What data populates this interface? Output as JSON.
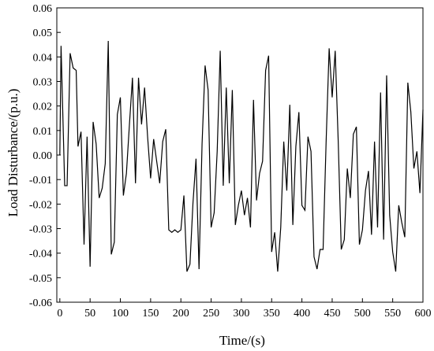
{
  "chart_data": {
    "type": "line",
    "title": "",
    "xlabel": "Time/(s)",
    "ylabel": "Load Disturbance/(p.u.)",
    "xlim": [
      -5,
      600
    ],
    "ylim": [
      -0.06,
      0.06
    ],
    "xticks": [
      0,
      50,
      100,
      150,
      200,
      250,
      300,
      350,
      400,
      450,
      500,
      550,
      600
    ],
    "yticks": [
      -0.06,
      -0.05,
      -0.04,
      -0.03,
      -0.02,
      -0.01,
      0.0,
      0.01,
      0.02,
      0.03,
      0.04,
      0.05,
      0.06
    ],
    "ytick_labels": [
      "-0.06",
      "-0.05",
      "-0.04",
      "-0.03",
      "-0.02",
      "-0.01",
      "0.00",
      "0.01",
      "0.02",
      "0.03",
      "0.04",
      "0.05",
      "0.06"
    ],
    "grid": false,
    "legend": "none",
    "line_color": "#000000",
    "series": [
      {
        "x": [
          0,
          2,
          8,
          12,
          17,
          22,
          27,
          30,
          35,
          40,
          45,
          50,
          55,
          60,
          65,
          70,
          75,
          80,
          85,
          90,
          95,
          100,
          105,
          110,
          115,
          120,
          125,
          130,
          135,
          140,
          145,
          150,
          155,
          160,
          165,
          170,
          175,
          180,
          185,
          190,
          195,
          200,
          205,
          210,
          215,
          220,
          225,
          230,
          235,
          240,
          245,
          250,
          255,
          260,
          265,
          270,
          275,
          280,
          285,
          290,
          295,
          300,
          305,
          310,
          315,
          320,
          325,
          330,
          335,
          340,
          345,
          350,
          355,
          360,
          365,
          370,
          375,
          380,
          385,
          390,
          395,
          400,
          405,
          410,
          415,
          420,
          425,
          430,
          435,
          440,
          445,
          450,
          455,
          460,
          465,
          470,
          475,
          480,
          485,
          490,
          495,
          500,
          505,
          510,
          515,
          520,
          525,
          530,
          535,
          540,
          545,
          550,
          555,
          560,
          565,
          570,
          575,
          580,
          585,
          590,
          595,
          600
        ],
        "y": [
          0.0,
          0.0445,
          -0.0125,
          -0.0125,
          0.0415,
          0.0355,
          0.0345,
          0.0035,
          0.0095,
          -0.0365,
          0.0075,
          -0.0455,
          0.0135,
          0.0045,
          -0.0175,
          -0.0135,
          -0.0035,
          0.0465,
          -0.0405,
          -0.0355,
          0.0165,
          0.0235,
          -0.0165,
          -0.0075,
          0.0125,
          0.0315,
          -0.0115,
          0.0315,
          0.0125,
          0.0275,
          0.0075,
          -0.0095,
          0.0065,
          -0.0025,
          -0.0115,
          0.0055,
          0.0105,
          -0.0305,
          -0.0315,
          -0.0305,
          -0.0315,
          -0.0305,
          -0.0165,
          -0.0475,
          -0.0445,
          -0.0195,
          -0.0015,
          -0.0465,
          0.0045,
          0.0365,
          0.0265,
          -0.0295,
          -0.0235,
          0.0015,
          0.0425,
          -0.0125,
          0.0275,
          -0.0115,
          0.0265,
          -0.0285,
          -0.0205,
          -0.0145,
          -0.0245,
          -0.0175,
          -0.0295,
          0.0225,
          -0.0185,
          -0.0075,
          -0.0025,
          0.0345,
          0.0405,
          -0.0395,
          -0.0315,
          -0.0475,
          -0.0295,
          0.0055,
          -0.0145,
          0.0205,
          -0.0285,
          0.0035,
          0.0175,
          -0.0205,
          -0.0225,
          0.0075,
          0.0015,
          -0.0415,
          -0.0465,
          -0.0385,
          -0.0385,
          0.0055,
          0.0435,
          0.0235,
          0.0425,
          0.0055,
          -0.0385,
          -0.0345,
          -0.0055,
          -0.0175,
          0.0085,
          0.0115,
          -0.0365,
          -0.0305,
          -0.0145,
          -0.0065,
          -0.0325,
          0.0055,
          -0.0295,
          0.0255,
          -0.0345,
          0.0325,
          -0.0245,
          -0.0395,
          -0.0475,
          -0.0205,
          -0.0275,
          -0.0335,
          0.0295,
          0.0175,
          -0.0055,
          0.0015,
          -0.0155,
          0.0185
        ]
      }
    ]
  }
}
